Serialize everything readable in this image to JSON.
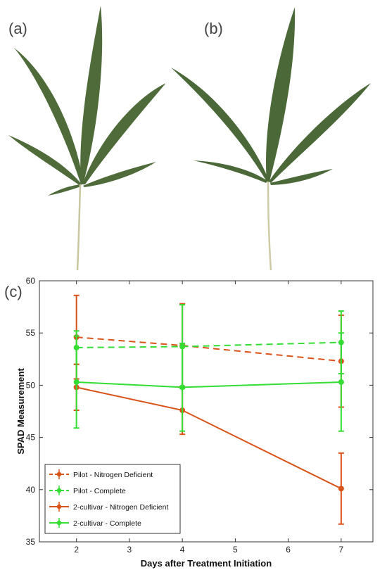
{
  "panels": {
    "a": "(a)",
    "b": "(b)",
    "c": "(c)"
  },
  "leaf_images": [
    {
      "name": "leaf-a",
      "leaf_color": "#4f6b3a",
      "midrib_color": "#c9c6a0"
    },
    {
      "name": "leaf-b",
      "leaf_color": "#4b6838",
      "midrib_color": "#cfcaa6"
    }
  ],
  "chart_data": {
    "type": "line",
    "xlabel": "Days after Treatment Initiation",
    "ylabel": "SPAD Measurement",
    "xlim": [
      1.3,
      7.6
    ],
    "ylim": [
      35,
      60
    ],
    "xticks": [
      2,
      3,
      4,
      5,
      6,
      7
    ],
    "yticks": [
      35,
      40,
      45,
      50,
      55,
      60
    ],
    "grid": false,
    "legend_position": "bottom-left",
    "series": [
      {
        "name": "Pilot - Nitrogen Deficient",
        "color": "#d95319",
        "style": "dashed",
        "x": [
          2,
          4,
          7
        ],
        "y": [
          54.6,
          53.8,
          52.3
        ],
        "err": [
          4.0,
          4.0,
          4.4
        ]
      },
      {
        "name": "Pilot - Complete",
        "color": "#33dd33",
        "style": "dashed",
        "x": [
          2,
          4,
          7
        ],
        "y": [
          53.6,
          53.7,
          54.1
        ],
        "err": [
          1.6,
          4.0,
          3.0
        ]
      },
      {
        "name": "2-cultivar - Nitrogen Deficient",
        "color": "#d95319",
        "style": "solid",
        "x": [
          2,
          4,
          7
        ],
        "y": [
          49.8,
          47.6,
          40.1
        ],
        "err": [
          2.2,
          2.3,
          3.4
        ]
      },
      {
        "name": "2-cultivar - Complete",
        "color": "#33dd33",
        "style": "solid",
        "x": [
          2,
          4,
          7
        ],
        "y": [
          50.3,
          49.8,
          50.3
        ],
        "err": [
          4.4,
          4.2,
          4.7
        ]
      }
    ]
  }
}
